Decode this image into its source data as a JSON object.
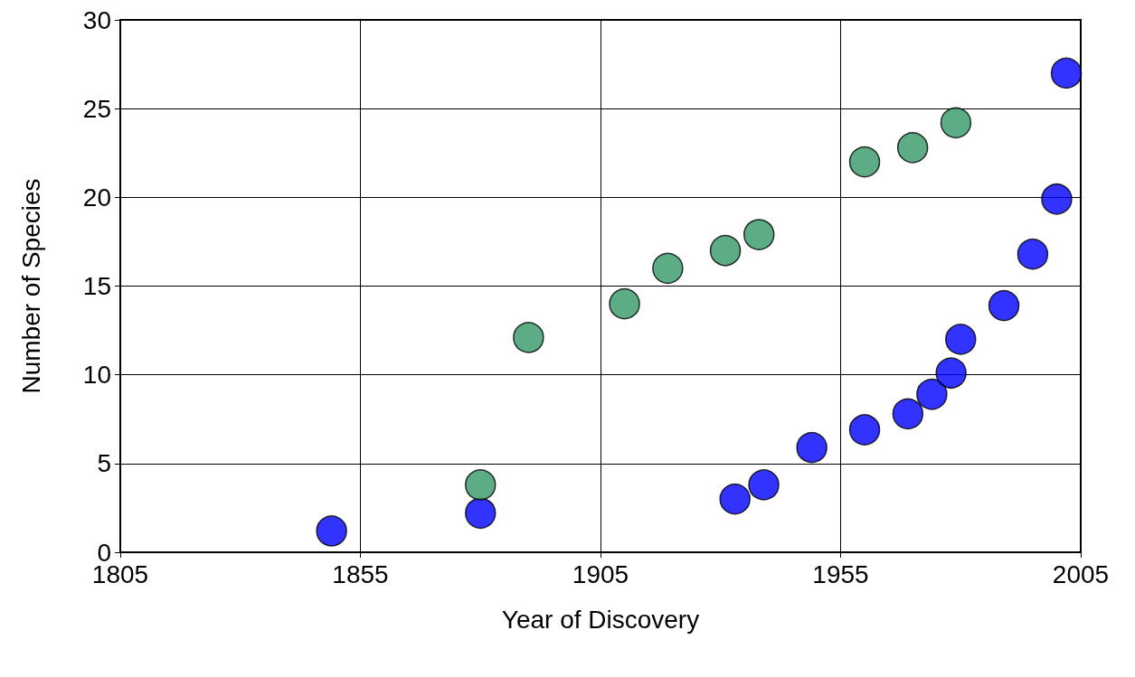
{
  "chart_data": {
    "type": "scatter",
    "xlabel": "Year of Discovery",
    "ylabel": "Number of Species",
    "xlim": [
      1805,
      2005
    ],
    "xticks": [
      1805,
      1855,
      1905,
      1955,
      2005
    ],
    "ylim": [
      0,
      30
    ],
    "yticks": [
      0,
      5,
      10,
      15,
      20,
      25,
      30
    ],
    "grid": true,
    "marker": "circle",
    "series": [
      {
        "color": "#0000ff",
        "x": [
          1849,
          1880,
          1933,
          1939,
          1949,
          1960,
          1969,
          1974,
          1978,
          1980,
          1989,
          1995,
          2000,
          2002
        ],
        "values": [
          1.2,
          2.2,
          3.0,
          3.8,
          5.9,
          6.9,
          7.8,
          8.9,
          10.1,
          12.0,
          13.9,
          16.8,
          19.9,
          27.0
        ]
      },
      {
        "color": "#339966",
        "x": [
          1880,
          1890,
          1910,
          1919,
          1931,
          1938,
          1960,
          1970,
          1979
        ],
        "values": [
          3.8,
          12.1,
          14.0,
          16.0,
          17.0,
          17.9,
          22.0,
          22.8,
          24.2
        ]
      }
    ]
  }
}
